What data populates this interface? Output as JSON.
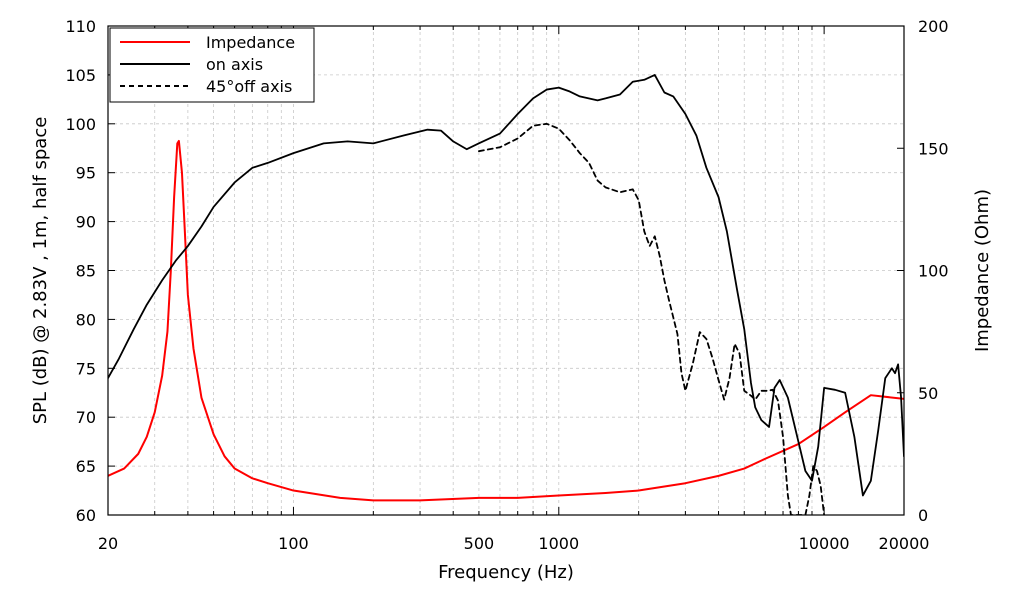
{
  "chart_data": {
    "type": "line",
    "xlabel": "Frequency (Hz)",
    "ylabel_left": "SPL (dB) @ 2.83V , 1m, half space",
    "ylabel_right": "Impedance (Ohm)",
    "x_scale": "log",
    "xlim": [
      20,
      20000
    ],
    "ylim_left": [
      60,
      110
    ],
    "ylim_right": [
      0,
      200
    ],
    "x_ticks": [
      20,
      100,
      500,
      1000,
      10000,
      20000
    ],
    "x_tick_labels": [
      "20",
      "100",
      "500",
      "1000",
      "10000",
      "20000"
    ],
    "y_ticks_left": [
      60,
      65,
      70,
      75,
      80,
      85,
      90,
      95,
      100,
      105,
      110
    ],
    "y_tick_labels_left": [
      "60",
      "65",
      "70",
      "75",
      "80",
      "85",
      "90",
      "95",
      "100",
      "105",
      "110"
    ],
    "y_ticks_right": [
      0,
      50,
      100,
      150,
      200
    ],
    "y_tick_labels_right": [
      "0",
      "50",
      "100",
      "150",
      "200"
    ],
    "grid": true,
    "legend_position": "top-left",
    "series": [
      {
        "name": "Impedance",
        "axis": "right",
        "color": "#ff0000",
        "style": "solid",
        "points": [
          [
            20,
            16
          ],
          [
            23,
            19
          ],
          [
            26,
            25
          ],
          [
            28,
            32
          ],
          [
            30,
            42
          ],
          [
            32,
            57
          ],
          [
            33.5,
            75
          ],
          [
            34.5,
            100
          ],
          [
            35.5,
            130
          ],
          [
            36.5,
            152
          ],
          [
            37,
            153
          ],
          [
            38,
            140
          ],
          [
            39,
            115
          ],
          [
            40,
            90
          ],
          [
            42,
            68
          ],
          [
            45,
            48
          ],
          [
            50,
            33
          ],
          [
            55,
            24
          ],
          [
            60,
            19
          ],
          [
            70,
            15
          ],
          [
            80,
            13
          ],
          [
            100,
            10
          ],
          [
            150,
            7
          ],
          [
            200,
            6
          ],
          [
            300,
            6
          ],
          [
            500,
            7
          ],
          [
            700,
            7
          ],
          [
            1000,
            8
          ],
          [
            1500,
            9
          ],
          [
            2000,
            10
          ],
          [
            3000,
            13
          ],
          [
            4000,
            16
          ],
          [
            5000,
            19
          ],
          [
            6000,
            23
          ],
          [
            8000,
            29
          ],
          [
            10000,
            36
          ],
          [
            12000,
            42
          ],
          [
            15000,
            49
          ],
          [
            20000,
            47.5
          ]
        ]
      },
      {
        "name": "on axis",
        "axis": "left",
        "color": "#000000",
        "style": "solid",
        "points": [
          [
            20,
            74
          ],
          [
            22,
            76
          ],
          [
            25,
            79
          ],
          [
            28,
            81.5
          ],
          [
            32,
            84
          ],
          [
            36,
            86
          ],
          [
            40,
            87.5
          ],
          [
            45,
            89.5
          ],
          [
            50,
            91.5
          ],
          [
            60,
            94
          ],
          [
            70,
            95.5
          ],
          [
            80,
            96
          ],
          [
            100,
            97
          ],
          [
            130,
            98
          ],
          [
            160,
            98.2
          ],
          [
            200,
            98
          ],
          [
            260,
            98.8
          ],
          [
            320,
            99.4
          ],
          [
            360,
            99.3
          ],
          [
            400,
            98.2
          ],
          [
            450,
            97.4
          ],
          [
            500,
            98
          ],
          [
            600,
            99
          ],
          [
            700,
            101
          ],
          [
            800,
            102.6
          ],
          [
            900,
            103.5
          ],
          [
            1000,
            103.7
          ],
          [
            1100,
            103.3
          ],
          [
            1200,
            102.8
          ],
          [
            1400,
            102.4
          ],
          [
            1500,
            102.6
          ],
          [
            1700,
            103
          ],
          [
            1900,
            104.3
          ],
          [
            2100,
            104.5
          ],
          [
            2300,
            105
          ],
          [
            2500,
            103.2
          ],
          [
            2700,
            102.8
          ],
          [
            3000,
            101
          ],
          [
            3300,
            98.8
          ],
          [
            3600,
            95.5
          ],
          [
            4000,
            92.5
          ],
          [
            4300,
            89
          ],
          [
            4700,
            83
          ],
          [
            5000,
            79
          ],
          [
            5300,
            73.5
          ],
          [
            5500,
            71
          ],
          [
            5800,
            69.7
          ],
          [
            6200,
            69
          ],
          [
            6500,
            73
          ],
          [
            6800,
            73.8
          ],
          [
            7300,
            72
          ],
          [
            8000,
            67.5
          ],
          [
            8500,
            64.5
          ],
          [
            9000,
            63.5
          ],
          [
            9500,
            67
          ],
          [
            10000,
            73
          ],
          [
            11000,
            72.8
          ],
          [
            12000,
            72.5
          ],
          [
            13000,
            68
          ],
          [
            14000,
            62
          ],
          [
            15000,
            63.5
          ],
          [
            16000,
            68.7
          ],
          [
            17000,
            74
          ],
          [
            18000,
            75
          ],
          [
            18500,
            74.5
          ],
          [
            19000,
            75.4
          ],
          [
            19500,
            72
          ],
          [
            20000,
            66
          ]
        ]
      },
      {
        "name": "45°off axis",
        "axis": "left",
        "color": "#000000",
        "style": "dashed",
        "points": [
          [
            500,
            97.2
          ],
          [
            600,
            97.6
          ],
          [
            700,
            98.5
          ],
          [
            800,
            99.8
          ],
          [
            900,
            100
          ],
          [
            1000,
            99.5
          ],
          [
            1100,
            98.3
          ],
          [
            1200,
            97
          ],
          [
            1300,
            96
          ],
          [
            1400,
            94.2
          ],
          [
            1500,
            93.5
          ],
          [
            1700,
            93
          ],
          [
            1900,
            93.3
          ],
          [
            2000,
            92.2
          ],
          [
            2100,
            89
          ],
          [
            2200,
            87.5
          ],
          [
            2300,
            88.5
          ],
          [
            2400,
            86.5
          ],
          [
            2500,
            84
          ],
          [
            2600,
            82
          ],
          [
            2800,
            78.5
          ],
          [
            2900,
            74.5
          ],
          [
            3000,
            72.7
          ],
          [
            3200,
            75.5
          ],
          [
            3400,
            78.7
          ],
          [
            3600,
            78
          ],
          [
            3800,
            76
          ],
          [
            4000,
            73.8
          ],
          [
            4200,
            71.8
          ],
          [
            4400,
            74
          ],
          [
            4600,
            77.5
          ],
          [
            4800,
            76.5
          ],
          [
            5000,
            72.7
          ],
          [
            5300,
            72.2
          ],
          [
            5500,
            71.8
          ],
          [
            5800,
            72.7
          ],
          [
            6100,
            72.7
          ],
          [
            6400,
            72.8
          ],
          [
            6700,
            71.7
          ],
          [
            7000,
            68
          ],
          [
            7300,
            62
          ],
          [
            7500,
            60
          ],
          [
            8500,
            60
          ],
          [
            8800,
            62
          ],
          [
            9100,
            65
          ],
          [
            9400,
            64.5
          ],
          [
            9700,
            63
          ],
          [
            10000,
            60
          ]
        ]
      }
    ]
  }
}
